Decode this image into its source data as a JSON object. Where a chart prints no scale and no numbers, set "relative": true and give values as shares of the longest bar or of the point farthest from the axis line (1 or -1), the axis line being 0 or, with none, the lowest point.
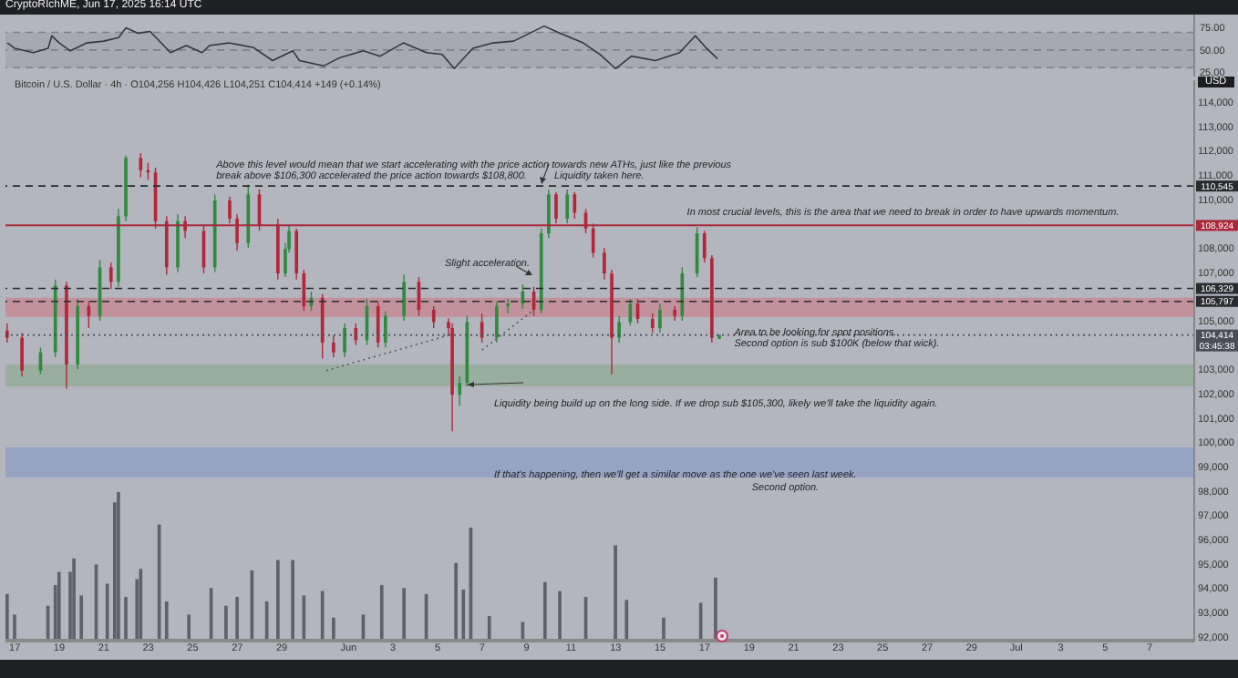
{
  "chart_data": [
    {
      "type": "line",
      "title": "CryptoRIchME, Jun 17, 2025 16:14 UTC",
      "x": [
        "2025-05-16T16:00",
        "2025-05-17T00:00",
        "2025-05-17T20:00",
        "2025-05-18T12:00",
        "2025-05-18T16:00",
        "2025-05-19T00:00",
        "2025-05-19T12:00",
        "2025-05-20T06:00",
        "2025-05-21T00:00",
        "2025-05-21T16:00",
        "2025-05-22T00:00",
        "2025-05-22T13:00",
        "2025-05-23T02:00",
        "2025-05-24T00:00",
        "2025-05-24T17:00",
        "2025-05-25T10:00",
        "2025-05-25T18:00",
        "2025-05-26T15:00",
        "2025-05-27T17:00",
        "2025-05-28T14:00",
        "2025-05-29T12:00",
        "2025-05-29T19:00",
        "2025-05-30T21:00",
        "2025-05-31T14:00",
        "2025-06-01T16:00",
        "2025-06-02T10:00",
        "2025-06-03T11:00",
        "2025-06-04T12:00",
        "2025-06-05T05:00",
        "2025-06-05T18:00",
        "2025-06-06T14:00",
        "2025-06-07T12:00",
        "2025-06-08T10:00",
        "2025-06-09T19:00",
        "2025-06-10T12:00",
        "2025-06-11T13:00",
        "2025-06-12T07:00",
        "2025-06-13T00:00",
        "2025-06-13T17:00",
        "2025-06-14T19:00",
        "2025-06-15T21:00",
        "2025-06-16T14:00",
        "2025-06-17T02:00",
        "2025-06-17T14:00"
      ],
      "values": [
        58,
        52,
        47,
        52,
        66,
        58,
        49,
        58,
        60,
        64,
        75,
        69,
        71,
        47,
        55,
        47,
        55,
        58,
        53,
        38,
        49,
        38,
        32,
        41,
        49,
        43,
        58,
        47,
        45,
        29,
        52,
        58,
        60,
        77,
        69,
        58,
        45,
        29,
        43,
        38,
        47,
        66,
        52,
        40
      ],
      "color": "#33363d",
      "xlim": [
        "2025-05-16T14:00",
        "2025-07-09T00:00"
      ],
      "ylim": [
        20,
        90
      ],
      "yticks": [
        {
          "value": 25,
          "label": "25.00"
        },
        {
          "value": 50,
          "label": "50.00"
        },
        {
          "value": 75,
          "label": "75.00"
        }
      ],
      "bands": [
        {
          "axis": "y",
          "from": 30,
          "to": 70,
          "color": "#a3a6ae"
        }
      ],
      "ref_lines": [
        {
          "axis": "y",
          "value": 70,
          "color": "#7d8088",
          "line_style": "dashed"
        },
        {
          "axis": "y",
          "value": 50,
          "color": "#7d8088",
          "line_style": "dashed"
        },
        {
          "axis": "y",
          "value": 30,
          "color": "#7d8088",
          "line_style": "dashed"
        }
      ],
      "tick_labels": "y"
    },
    {
      "type": "candlestick",
      "title": "Bitcoin / U.S. Dollar · 4h · O104,256 H104,426 L104,251 C104,414 +149 (+0.14%)",
      "x": [
        "2025-05-16T16:00",
        "2025-05-17T08:00",
        "2025-05-18T04:00",
        "2025-05-18T20:00",
        "2025-05-19T08:00",
        "2025-05-19T20:00",
        "2025-05-20T08:00",
        "2025-05-20T20:00",
        "2025-05-21T08:00",
        "2025-05-21T16:00",
        "2025-05-22T00:00",
        "2025-05-22T16:00",
        "2025-05-23T00:00",
        "2025-05-23T08:00",
        "2025-05-23T20:00",
        "2025-05-24T08:00",
        "2025-05-24T16:00",
        "2025-05-25T12:00",
        "2025-05-26T00:00",
        "2025-05-26T16:00",
        "2025-05-27T00:00",
        "2025-05-27T12:00",
        "2025-05-28T00:00",
        "2025-05-28T20:00",
        "2025-05-29T04:00",
        "2025-05-29T08:00",
        "2025-05-29T16:00",
        "2025-05-30T00:00",
        "2025-05-30T08:00",
        "2025-05-30T20:00",
        "2025-05-31T08:00",
        "2025-05-31T20:00",
        "2025-06-01T08:00",
        "2025-06-01T20:00",
        "2025-06-02T08:00",
        "2025-06-02T16:00",
        "2025-06-03T12:00",
        "2025-06-04T04:00",
        "2025-06-04T20:00",
        "2025-06-05T12:00",
        "2025-06-05T16:00",
        "2025-06-06T00:00",
        "2025-06-06T08:00",
        "2025-06-07T00:00",
        "2025-06-07T16:00",
        "2025-06-08T04:00",
        "2025-06-08T20:00",
        "2025-06-09T08:00",
        "2025-06-09T16:00",
        "2025-06-10T00:00",
        "2025-06-10T08:00",
        "2025-06-10T20:00",
        "2025-06-11T04:00",
        "2025-06-11T16:00",
        "2025-06-12T00:00",
        "2025-06-12T12:00",
        "2025-06-12T20:00",
        "2025-06-13T04:00",
        "2025-06-13T16:00",
        "2025-06-14T00:00",
        "2025-06-14T16:00",
        "2025-06-15T00:00",
        "2025-06-15T16:00",
        "2025-06-16T00:00",
        "2025-06-16T16:00",
        "2025-06-17T00:00",
        "2025-06-17T08:00",
        "2025-06-17T16:00"
      ],
      "ohlc": [
        [
          104600,
          104900,
          104100,
          104300
        ],
        [
          104300,
          104500,
          102700,
          102950
        ],
        [
          102950,
          103900,
          102800,
          103700
        ],
        [
          103700,
          106700,
          103500,
          106450
        ],
        [
          106450,
          106600,
          102200,
          103200
        ],
        [
          103200,
          105900,
          103000,
          105600
        ],
        [
          105600,
          105800,
          104700,
          105200
        ],
        [
          105200,
          107500,
          105000,
          107200
        ],
        [
          107200,
          107400,
          106300,
          106600
        ],
        [
          106600,
          109600,
          106400,
          109300
        ],
        [
          109300,
          111800,
          109100,
          111700
        ],
        [
          111700,
          111900,
          110900,
          111200
        ],
        [
          111200,
          111500,
          110800,
          111100
        ],
        [
          111100,
          111300,
          108800,
          109100
        ],
        [
          109100,
          109300,
          106900,
          107200
        ],
        [
          107200,
          109400,
          107000,
          109100
        ],
        [
          109100,
          109300,
          108400,
          108700
        ],
        [
          108700,
          108900,
          106950,
          107200
        ],
        [
          107200,
          110200,
          107000,
          109950
        ],
        [
          109950,
          110100,
          109000,
          109200
        ],
        [
          109200,
          109400,
          107900,
          108200
        ],
        [
          108200,
          110600,
          108000,
          110200
        ],
        [
          110200,
          110400,
          108700,
          108950
        ],
        [
          108950,
          109200,
          106700,
          106950
        ],
        [
          106950,
          108200,
          106800,
          107950
        ],
        [
          107950,
          108900,
          107800,
          108700
        ],
        [
          108700,
          108800,
          106700,
          106950
        ],
        [
          106950,
          107100,
          105400,
          105600
        ],
        [
          105600,
          106200,
          105400,
          105950
        ],
        [
          105950,
          106100,
          103450,
          104100
        ],
        [
          104100,
          104400,
          103500,
          103700
        ],
        [
          103700,
          104900,
          103500,
          104700
        ],
        [
          104700,
          104900,
          104000,
          104200
        ],
        [
          104200,
          105900,
          104000,
          105600
        ],
        [
          105600,
          105800,
          103900,
          104100
        ],
        [
          104100,
          105400,
          103900,
          105200
        ],
        [
          105200,
          106900,
          105000,
          106600
        ],
        [
          106600,
          106800,
          105200,
          105450
        ],
        [
          105450,
          105600,
          104700,
          104950
        ],
        [
          104950,
          105100,
          104400,
          104700
        ],
        [
          104700,
          104900,
          100450,
          101950
        ],
        [
          101950,
          102700,
          101500,
          102450
        ],
        [
          102450,
          105200,
          102300,
          104950
        ],
        [
          104950,
          105300,
          104100,
          104300
        ],
        [
          104300,
          105800,
          104100,
          105600
        ],
        [
          105600,
          105900,
          105300,
          105700
        ],
        [
          105700,
          106500,
          105500,
          106200
        ],
        [
          106200,
          106400,
          105200,
          105450
        ],
        [
          105450,
          108800,
          105300,
          108600
        ],
        [
          108600,
          110400,
          108400,
          110200
        ],
        [
          110200,
          110300,
          109000,
          109200
        ],
        [
          109200,
          110400,
          109000,
          110200
        ],
        [
          110200,
          110300,
          109200,
          109450
        ],
        [
          109450,
          109600,
          108600,
          108800
        ],
        [
          108800,
          109000,
          107600,
          107800
        ],
        [
          107800,
          108000,
          106700,
          106950
        ],
        [
          106950,
          107100,
          102800,
          104300
        ],
        [
          104300,
          105200,
          104100,
          104950
        ],
        [
          104950,
          105900,
          104800,
          105700
        ],
        [
          105700,
          105900,
          104900,
          105075
        ],
        [
          105075,
          105300,
          104500,
          104700
        ],
        [
          104700,
          105700,
          104500,
          105450
        ],
        [
          105450,
          105600,
          105000,
          105200
        ],
        [
          105200,
          107200,
          105000,
          106950
        ],
        [
          106950,
          108850,
          106800,
          108600
        ],
        [
          108600,
          108700,
          107400,
          107575
        ],
        [
          107575,
          107700,
          104100,
          104300
        ],
        [
          104256,
          104426,
          104251,
          104414
        ]
      ],
      "colors": [
        "#b3263a",
        "#b3263a",
        "#2f8a3e",
        "#2f8a3e",
        "#b3263a",
        "#2f8a3e",
        "#b3263a",
        "#2f8a3e",
        "#b3263a",
        "#2f8a3e",
        "#2f8a3e",
        "#b3263a",
        "#b3263a",
        "#b3263a",
        "#b3263a",
        "#2f8a3e",
        "#b3263a",
        "#b3263a",
        "#2f8a3e",
        "#b3263a",
        "#b3263a",
        "#2f8a3e",
        "#b3263a",
        "#b3263a",
        "#2f8a3e",
        "#2f8a3e",
        "#b3263a",
        "#b3263a",
        "#2f8a3e",
        "#b3263a",
        "#b3263a",
        "#2f8a3e",
        "#b3263a",
        "#2f8a3e",
        "#b3263a",
        "#2f8a3e",
        "#2f8a3e",
        "#b3263a",
        "#b3263a",
        "#b3263a",
        "#b3263a",
        "#2f8a3e",
        "#2f8a3e",
        "#b3263a",
        "#2f8a3e",
        "#2f8a3e",
        "#2f8a3e",
        "#b3263a",
        "#2f8a3e",
        "#2f8a3e",
        "#b3263a",
        "#2f8a3e",
        "#b3263a",
        "#b3263a",
        "#b3263a",
        "#b3263a",
        "#b3263a",
        "#2f8a3e",
        "#2f8a3e",
        "#b3263a",
        "#b3263a",
        "#2f8a3e",
        "#b3263a",
        "#2f8a3e",
        "#2f8a3e",
        "#b3263a",
        "#b3263a",
        "#2f8a3e"
      ],
      "series": [
        {
          "type": "line",
          "x": [
            "2025-05-31T00:00",
            "2025-06-05T16:00"
          ],
          "values": [
            102950,
            104450
          ],
          "color": "#55585f",
          "line_style": "dotted"
        },
        {
          "type": "line",
          "x": [
            "2025-06-07T00:00",
            "2025-06-09T08:00"
          ],
          "values": [
            103800,
            105450
          ],
          "color": "#55585f",
          "line_style": "dotted"
        }
      ],
      "xlim": [
        "2025-05-16T14:00",
        "2025-07-09T00:00"
      ],
      "ylim": [
        91800,
        114900
      ],
      "xticks": [
        {
          "value": "2025-05-17",
          "label": "17"
        },
        {
          "value": "2025-05-19",
          "label": "19"
        },
        {
          "value": "2025-05-21",
          "label": "21"
        },
        {
          "value": "2025-05-23",
          "label": "23"
        },
        {
          "value": "2025-05-25",
          "label": "25"
        },
        {
          "value": "2025-05-27",
          "label": "27"
        },
        {
          "value": "2025-05-29",
          "label": "29"
        },
        {
          "value": "2025-06-01",
          "label": "Jun"
        },
        {
          "value": "2025-06-03",
          "label": "3"
        },
        {
          "value": "2025-06-05",
          "label": "5"
        },
        {
          "value": "2025-06-07",
          "label": "7"
        },
        {
          "value": "2025-06-09",
          "label": "9"
        },
        {
          "value": "2025-06-11",
          "label": "11"
        },
        {
          "value": "2025-06-13",
          "label": "13"
        },
        {
          "value": "2025-06-15",
          "label": "15"
        },
        {
          "value": "2025-06-17",
          "label": "17"
        },
        {
          "value": "2025-06-19",
          "label": "19"
        },
        {
          "value": "2025-06-21",
          "label": "21"
        },
        {
          "value": "2025-06-23",
          "label": "23"
        },
        {
          "value": "2025-06-25",
          "label": "25"
        },
        {
          "value": "2025-06-27",
          "label": "27"
        },
        {
          "value": "2025-06-29",
          "label": "29"
        },
        {
          "value": "2025-07-01",
          "label": "Jul"
        },
        {
          "value": "2025-07-03",
          "label": "3"
        },
        {
          "value": "2025-07-05",
          "label": "5"
        },
        {
          "value": "2025-07-07",
          "label": "7"
        }
      ],
      "yticks": [
        {
          "value": 92000,
          "label": "92,000"
        },
        {
          "value": 93000,
          "label": "93,000"
        },
        {
          "value": 94000,
          "label": "94,000"
        },
        {
          "value": 95000,
          "label": "95,000"
        },
        {
          "value": 96000,
          "label": "96,000"
        },
        {
          "value": 97000,
          "label": "97,000"
        },
        {
          "value": 98000,
          "label": "98,000"
        },
        {
          "value": 99000,
          "label": "99,000"
        },
        {
          "value": 100000,
          "label": "100,000"
        },
        {
          "value": 101000,
          "label": "101,000"
        },
        {
          "value": 102000,
          "label": "102,000"
        },
        {
          "value": 103000,
          "label": "103,000"
        },
        {
          "value": 105000,
          "label": "105,000"
        },
        {
          "value": 107000,
          "label": "107,000"
        },
        {
          "value": 108000,
          "label": "108,000"
        },
        {
          "value": 110000,
          "label": "110,000"
        },
        {
          "value": 111000,
          "label": "111,000"
        },
        {
          "value": 112000,
          "label": "112,000"
        },
        {
          "value": 113000,
          "label": "113,000"
        },
        {
          "value": 114000,
          "label": "114,000"
        }
      ],
      "bands": [
        {
          "axis": "y",
          "from": 105150,
          "to": 105950,
          "color": "#c48a92"
        },
        {
          "axis": "y",
          "from": 102300,
          "to": 103200,
          "color": "#93ad98"
        },
        {
          "axis": "y",
          "from": 98550,
          "to": 99800,
          "color": "#8e9fc4"
        }
      ],
      "ref_lines": [
        {
          "axis": "y",
          "value": 110545,
          "label": "110,545",
          "color": "#2a2b30",
          "line_style": "dashed"
        },
        {
          "axis": "y",
          "value": 108924,
          "label": "108,924",
          "color": "#a8283a",
          "line_style": "solid"
        },
        {
          "axis": "y",
          "value": 106329,
          "label": "106,329",
          "color": "#2a2b30",
          "line_style": "dashed"
        },
        {
          "axis": "y",
          "value": 105797,
          "label": "105,797",
          "color": "#2a2b30",
          "line_style": "dashed"
        },
        {
          "axis": "y",
          "value": 104414,
          "label": "104,414 03:45:38",
          "color": "#4a4d57",
          "line_style": "dotted"
        }
      ],
      "annotations": [
        "USD",
        "Above this level would mean that we start accelerating with the price action towards new ATHs, just like the previous\nbreak above $106,300 accelerated the price action towards $108,800.",
        "Liquidity taken here.",
        "Slight acceleration.",
        "In most crucial levels, this is the area that we need to break in order to have upwards momentum.",
        "Area to be looking for spot positions.\nSecond option is sub $100K (below that wick).",
        "Liquidity being build up on the long side. If we drop sub $105,300, likely we'll take the liquidity again.",
        "If that's happening, then we'll get a similar move as the one we've seen last week.",
        "Second option."
      ]
    },
    {
      "type": "bar",
      "relative": true,
      "tick_labels": false,
      "color": "#5e6169",
      "xlim": [
        "2025-05-16T14:00",
        "2025-07-09T00:00"
      ],
      "x": [
        "2025-05-16T16:00",
        "2025-05-17T00:00",
        "2025-05-18T12:00",
        "2025-05-18T20:00",
        "2025-05-19T00:00",
        "2025-05-19T12:00",
        "2025-05-19T16:00",
        "2025-05-20T00:00",
        "2025-05-20T16:00",
        "2025-05-21T04:00",
        "2025-05-21T12:00",
        "2025-05-21T16:00",
        "2025-05-22T00:00",
        "2025-05-22T12:00",
        "2025-05-22T16:00",
        "2025-05-23T12:00",
        "2025-05-23T20:00",
        "2025-05-24T20:00",
        "2025-05-25T20:00",
        "2025-05-26T12:00",
        "2025-05-27T00:00",
        "2025-05-27T16:00",
        "2025-05-28T08:00",
        "2025-05-28T20:00",
        "2025-05-29T12:00",
        "2025-05-30T00:00",
        "2025-05-30T20:00",
        "2025-05-31T08:00",
        "2025-06-01T16:00",
        "2025-06-02T12:00",
        "2025-06-03T12:00",
        "2025-06-04T12:00",
        "2025-06-05T20:00",
        "2025-06-06T04:00",
        "2025-06-06T12:00",
        "2025-06-07T08:00",
        "2025-06-08T20:00",
        "2025-06-09T20:00",
        "2025-06-10T12:00",
        "2025-06-11T16:00",
        "2025-06-13T00:00",
        "2025-06-13T12:00",
        "2025-06-15T04:00",
        "2025-06-16T20:00",
        "2025-06-17T12:00"
      ],
      "values": [
        0.31,
        0.17,
        0.23,
        0.37,
        0.46,
        0.46,
        0.55,
        0.3,
        0.51,
        0.38,
        0.93,
        1,
        0.29,
        0.41,
        0.48,
        0.78,
        0.26,
        0.17,
        0.35,
        0.23,
        0.29,
        0.47,
        0.26,
        0.54,
        0.54,
        0.3,
        0.33,
        0.15,
        0.17,
        0.37,
        0.35,
        0.31,
        0.52,
        0.34,
        0.76,
        0.16,
        0.12,
        0.39,
        0.33,
        0.29,
        0.64,
        0.27,
        0.15,
        0.25,
        0.42
      ]
    }
  ]
}
